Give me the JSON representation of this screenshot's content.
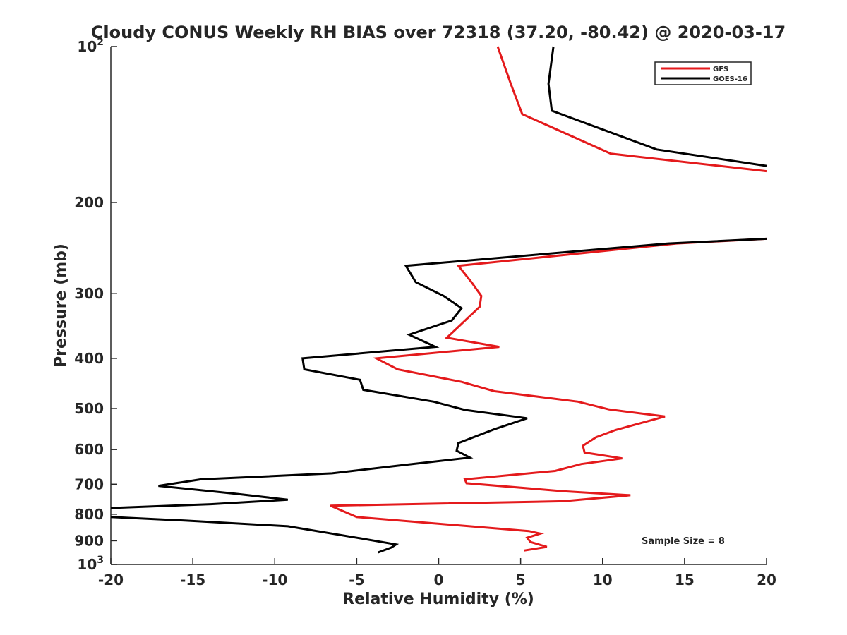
{
  "chart_data": {
    "type": "line",
    "title": "Cloudy CONUS Weekly RH BIAS over 72318 (37.20, -80.42) @ 2020-03-17",
    "xlabel": "Relative Humidity (%)",
    "ylabel": "Pressure (mb)",
    "xlim": [
      -20,
      20
    ],
    "ylim": [
      100,
      1000
    ],
    "yscale": "log",
    "y_reversed": true,
    "grid": false,
    "legend_position": "top-right",
    "x_ticks": [
      {
        "value": -20,
        "label": "-20"
      },
      {
        "value": -15,
        "label": "-15"
      },
      {
        "value": -10,
        "label": "-10"
      },
      {
        "value": -5,
        "label": "-5"
      },
      {
        "value": 0,
        "label": "0"
      },
      {
        "value": 5,
        "label": "5"
      },
      {
        "value": 10,
        "label": "10"
      },
      {
        "value": 15,
        "label": "15"
      },
      {
        "value": 20,
        "label": "20"
      }
    ],
    "y_ticks": [
      {
        "value": 100,
        "base": "10",
        "exp": "2"
      },
      {
        "value": 200,
        "base": "200",
        "exp": ""
      },
      {
        "value": 300,
        "base": "300",
        "exp": ""
      },
      {
        "value": 400,
        "base": "400",
        "exp": ""
      },
      {
        "value": 500,
        "base": "500",
        "exp": ""
      },
      {
        "value": 600,
        "base": "600",
        "exp": ""
      },
      {
        "value": 700,
        "base": "700",
        "exp": ""
      },
      {
        "value": 800,
        "base": "800",
        "exp": ""
      },
      {
        "value": 900,
        "base": "900",
        "exp": ""
      },
      {
        "value": 1000,
        "base": "10",
        "exp": "3"
      }
    ],
    "annotation": "Sample Size = 8",
    "series": [
      {
        "name": "GFS",
        "color": "#e41a1c",
        "points": [
          {
            "x": 3.6,
            "y": 100
          },
          {
            "x": 4.4,
            "y": 118
          },
          {
            "x": 5.1,
            "y": 135
          },
          {
            "x": 10.5,
            "y": 161
          },
          {
            "x": 20.0,
            "y": 174
          },
          {
            "x": null,
            "y": null
          },
          {
            "x": 20.0,
            "y": 235
          },
          {
            "x": 14.5,
            "y": 240
          },
          {
            "x": 1.2,
            "y": 265
          },
          {
            "x": 2.0,
            "y": 285
          },
          {
            "x": 2.6,
            "y": 303
          },
          {
            "x": 2.5,
            "y": 318
          },
          {
            "x": 0.5,
            "y": 365
          },
          {
            "x": 3.7,
            "y": 380
          },
          {
            "x": -3.8,
            "y": 400
          },
          {
            "x": -2.5,
            "y": 420
          },
          {
            "x": 1.4,
            "y": 444
          },
          {
            "x": 3.4,
            "y": 463
          },
          {
            "x": 8.5,
            "y": 485
          },
          {
            "x": 10.4,
            "y": 502
          },
          {
            "x": 13.8,
            "y": 518
          },
          {
            "x": 10.8,
            "y": 550
          },
          {
            "x": 9.6,
            "y": 568
          },
          {
            "x": 8.8,
            "y": 590
          },
          {
            "x": 8.9,
            "y": 608
          },
          {
            "x": 11.2,
            "y": 624
          },
          {
            "x": 8.7,
            "y": 640
          },
          {
            "x": 7.1,
            "y": 660
          },
          {
            "x": 1.6,
            "y": 685
          },
          {
            "x": 1.7,
            "y": 697
          },
          {
            "x": 7.6,
            "y": 722
          },
          {
            "x": 11.7,
            "y": 735
          },
          {
            "x": 7.6,
            "y": 755
          },
          {
            "x": -6.6,
            "y": 770
          },
          {
            "x": -5.0,
            "y": 810
          },
          {
            "x": 5.5,
            "y": 862
          },
          {
            "x": 6.2,
            "y": 872
          },
          {
            "x": 5.4,
            "y": 888
          },
          {
            "x": 5.6,
            "y": 905
          },
          {
            "x": 6.6,
            "y": 925
          },
          {
            "x": 5.2,
            "y": 940
          }
        ]
      },
      {
        "name": "GOES-16",
        "color": "#000000",
        "points": [
          {
            "x": 7.0,
            "y": 100
          },
          {
            "x": 6.7,
            "y": 118
          },
          {
            "x": 6.9,
            "y": 133
          },
          {
            "x": 13.3,
            "y": 158
          },
          {
            "x": 20.0,
            "y": 170
          },
          {
            "x": null,
            "y": null
          },
          {
            "x": 20.0,
            "y": 235
          },
          {
            "x": 14.0,
            "y": 240
          },
          {
            "x": -2.0,
            "y": 265
          },
          {
            "x": -1.4,
            "y": 285
          },
          {
            "x": 0.3,
            "y": 303
          },
          {
            "x": 1.4,
            "y": 320
          },
          {
            "x": 0.8,
            "y": 338
          },
          {
            "x": -1.8,
            "y": 360
          },
          {
            "x": -0.2,
            "y": 380
          },
          {
            "x": -8.3,
            "y": 400
          },
          {
            "x": -8.2,
            "y": 420
          },
          {
            "x": -4.8,
            "y": 440
          },
          {
            "x": -4.6,
            "y": 460
          },
          {
            "x": -0.3,
            "y": 485
          },
          {
            "x": 1.6,
            "y": 503
          },
          {
            "x": 5.4,
            "y": 522
          },
          {
            "x": 3.4,
            "y": 548
          },
          {
            "x": 1.2,
            "y": 583
          },
          {
            "x": 1.1,
            "y": 603
          },
          {
            "x": 1.9,
            "y": 622
          },
          {
            "x": -2.0,
            "y": 642
          },
          {
            "x": -6.5,
            "y": 667
          },
          {
            "x": -14.5,
            "y": 685
          },
          {
            "x": -17.1,
            "y": 705
          },
          {
            "x": -12.4,
            "y": 730
          },
          {
            "x": -9.2,
            "y": 750
          },
          {
            "x": -13.9,
            "y": 765
          },
          {
            "x": -20.0,
            "y": 778
          },
          {
            "x": null,
            "y": null
          },
          {
            "x": -20.0,
            "y": 810
          },
          {
            "x": -15.4,
            "y": 823
          },
          {
            "x": -9.2,
            "y": 844
          },
          {
            "x": -4.8,
            "y": 890
          },
          {
            "x": -2.6,
            "y": 915
          },
          {
            "x": -2.9,
            "y": 928
          },
          {
            "x": -3.7,
            "y": 948
          }
        ]
      }
    ]
  }
}
